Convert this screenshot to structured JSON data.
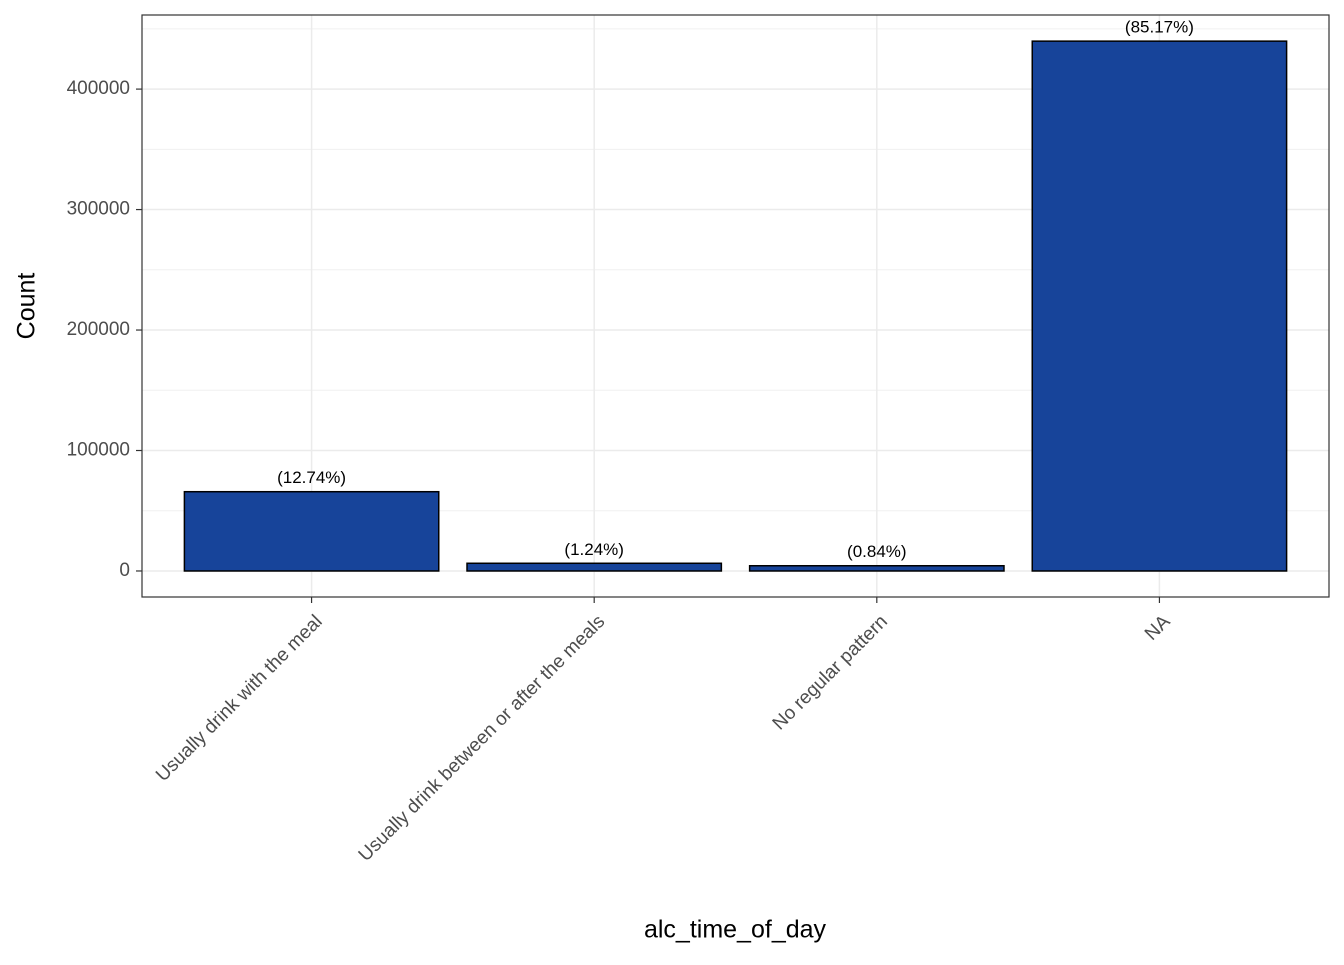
{
  "chart_data": {
    "type": "bar",
    "xlabel": "alc_time_of_day",
    "ylabel": "Count",
    "categories": [
      "Usually drink with the meal",
      "Usually drink between or after the meals",
      "No regular pattern",
      "NA"
    ],
    "values": [
      65800,
      6400,
      4340,
      439800
    ],
    "bar_labels": [
      "(12.74%)",
      "(1.24%)",
      "(0.84%)",
      "(85.17%)"
    ],
    "color": "#17449a",
    "ylim": [
      -21600,
      461500
    ],
    "yticks": [
      0,
      100000,
      200000,
      300000,
      400000
    ],
    "yminorticks": [
      50000,
      150000,
      250000,
      350000,
      450000
    ],
    "grid": true
  }
}
